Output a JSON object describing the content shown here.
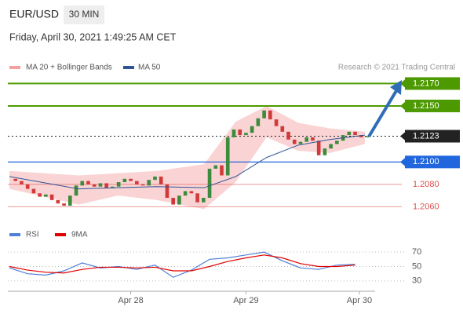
{
  "header": {
    "symbol": "EUR/USD",
    "interval": "30 MIN",
    "timestamp": "Friday, April 30, 2021 1:49:25 AM CET"
  },
  "legend": {
    "items": [
      {
        "name": "MA 20 + Bollinger Bands",
        "color": "#f4a0a0"
      },
      {
        "name": "MA 50",
        "color": "#2f5597"
      }
    ],
    "credit": "Research © 2021 Trading Central"
  },
  "chart_data": [
    {
      "type": "candlestick",
      "xlim": [
        0,
        59
      ],
      "ylim": [
        1.2054,
        1.2178
      ],
      "xticks": [
        {
          "value": 20,
          "label": "Apr 28"
        },
        {
          "value": 39,
          "label": "Apr 29"
        },
        {
          "value": 57.7,
          "label": "Apr 30"
        }
      ],
      "up_color": "#3d8b3d",
      "down_color": "#d23a3a",
      "closes": [
        1.2085,
        1.2083,
        1.208,
        1.2076,
        1.2072,
        1.2069,
        1.2071,
        1.2066,
        1.2063,
        1.2061,
        1.207,
        1.2079,
        1.2083,
        1.208,
        1.2078,
        1.2081,
        1.2077,
        1.2078,
        1.2082,
        1.2085,
        1.2083,
        1.208,
        1.2079,
        1.2084,
        1.2087,
        1.208,
        1.2068,
        1.2062,
        1.207,
        1.2074,
        1.2072,
        1.2064,
        1.2068,
        1.2094,
        1.2097,
        1.2088,
        1.2122,
        1.2129,
        1.2124,
        1.2126,
        1.2132,
        1.2139,
        1.2146,
        1.2138,
        1.2132,
        1.2127,
        1.212,
        1.2116,
        1.2118,
        1.2122,
        1.2119,
        1.2106,
        1.2112,
        1.2116,
        1.2119,
        1.2124,
        1.2127,
        1.2124,
        1.2122,
        1.2123
      ],
      "bands": {
        "x": [
          0,
          11.4,
          17.9,
          24.3,
          32.1,
          37.3,
          42.4,
          47.6,
          52.8,
          58.6
        ],
        "upper": [
          1.2092,
          1.2088,
          1.209,
          1.2092,
          1.2098,
          1.2136,
          1.215,
          1.2135,
          1.213,
          1.2127
        ],
        "lower": [
          1.2076,
          1.2062,
          1.207,
          1.2066,
          1.2058,
          1.2082,
          1.2122,
          1.211,
          1.2108,
          1.2116
        ],
        "ma50": [
          1.2087,
          1.2076,
          1.2077,
          1.2078,
          1.2077,
          1.2087,
          1.2104,
          1.2115,
          1.212,
          1.2124
        ]
      },
      "levels": [
        {
          "value": 1.217,
          "label": "1.2170",
          "color": "#4d9a00",
          "boxed": true,
          "dotted": false
        },
        {
          "value": 1.215,
          "label": "1.2150",
          "color": "#4d9a00",
          "boxed": true,
          "dotted": false
        },
        {
          "value": 1.2123,
          "color": "#222222",
          "boxed": true,
          "dotted": true
        },
        {
          "value": 1.21,
          "label": "1.2100",
          "color": "#2266dd",
          "boxed": true,
          "dotted": false
        },
        {
          "value": 1.208,
          "label": "1.2080",
          "color": "#e05050",
          "boxed": false,
          "dotted": false
        },
        {
          "value": 1.206,
          "label": "1.2060",
          "color": "#e05050",
          "boxed": false,
          "dotted": false
        }
      ]
    },
    {
      "type": "line",
      "xlim": [
        0,
        59
      ],
      "ylim": [
        20,
        80
      ],
      "yticks": [
        70,
        50,
        30
      ],
      "x": [
        0,
        3,
        6,
        9,
        12,
        15,
        18,
        21,
        24,
        27,
        30,
        33,
        36,
        39,
        42,
        45,
        48,
        51,
        54,
        57
      ],
      "series": [
        {
          "name": "RSI",
          "color": "#4f7fd8",
          "values": [
            48,
            40,
            38,
            44,
            55,
            48,
            50,
            46,
            52,
            35,
            45,
            60,
            62,
            66,
            70,
            58,
            48,
            46,
            52,
            53
          ]
        },
        {
          "name": "9MA",
          "color": "#e00000",
          "values": [
            50,
            45,
            42,
            41,
            46,
            49,
            49,
            48,
            49,
            44,
            44,
            50,
            57,
            62,
            66,
            62,
            54,
            50,
            50,
            52
          ]
        }
      ]
    }
  ]
}
